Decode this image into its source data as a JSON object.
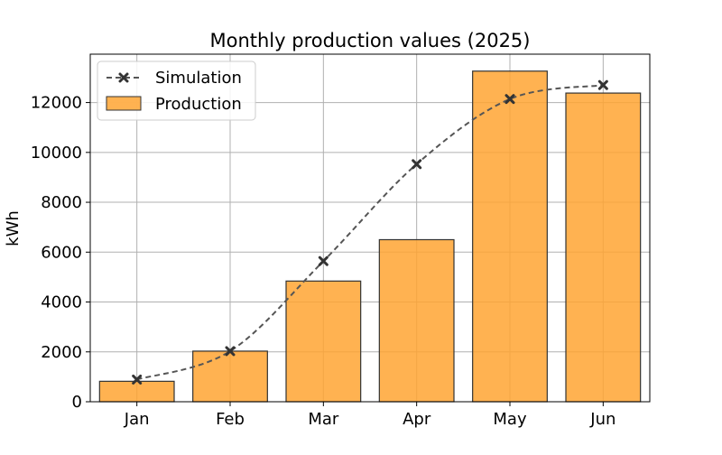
{
  "chart_data": {
    "type": "bar",
    "title": "Monthly production values (2025)",
    "xlabel": "",
    "ylabel": "kWh",
    "categories": [
      "Jan",
      "Feb",
      "Mar",
      "Apr",
      "May",
      "Jun"
    ],
    "ylim": [
      0,
      13940
    ],
    "yticks": [
      0,
      2000,
      4000,
      6000,
      8000,
      10000,
      12000
    ],
    "grid": true,
    "legend_position": "top-left",
    "series": [
      {
        "name": "Production",
        "type": "bar",
        "values": [
          820,
          2030,
          4840,
          6500,
          13260,
          12380
        ],
        "color": "#ffa533",
        "edge_color": "#333333"
      },
      {
        "name": "Simulation",
        "type": "line",
        "values": [
          890,
          2030,
          5640,
          9530,
          12140,
          12700
        ],
        "color": "#555555",
        "line_style": "dashed",
        "marker": "x"
      }
    ]
  }
}
